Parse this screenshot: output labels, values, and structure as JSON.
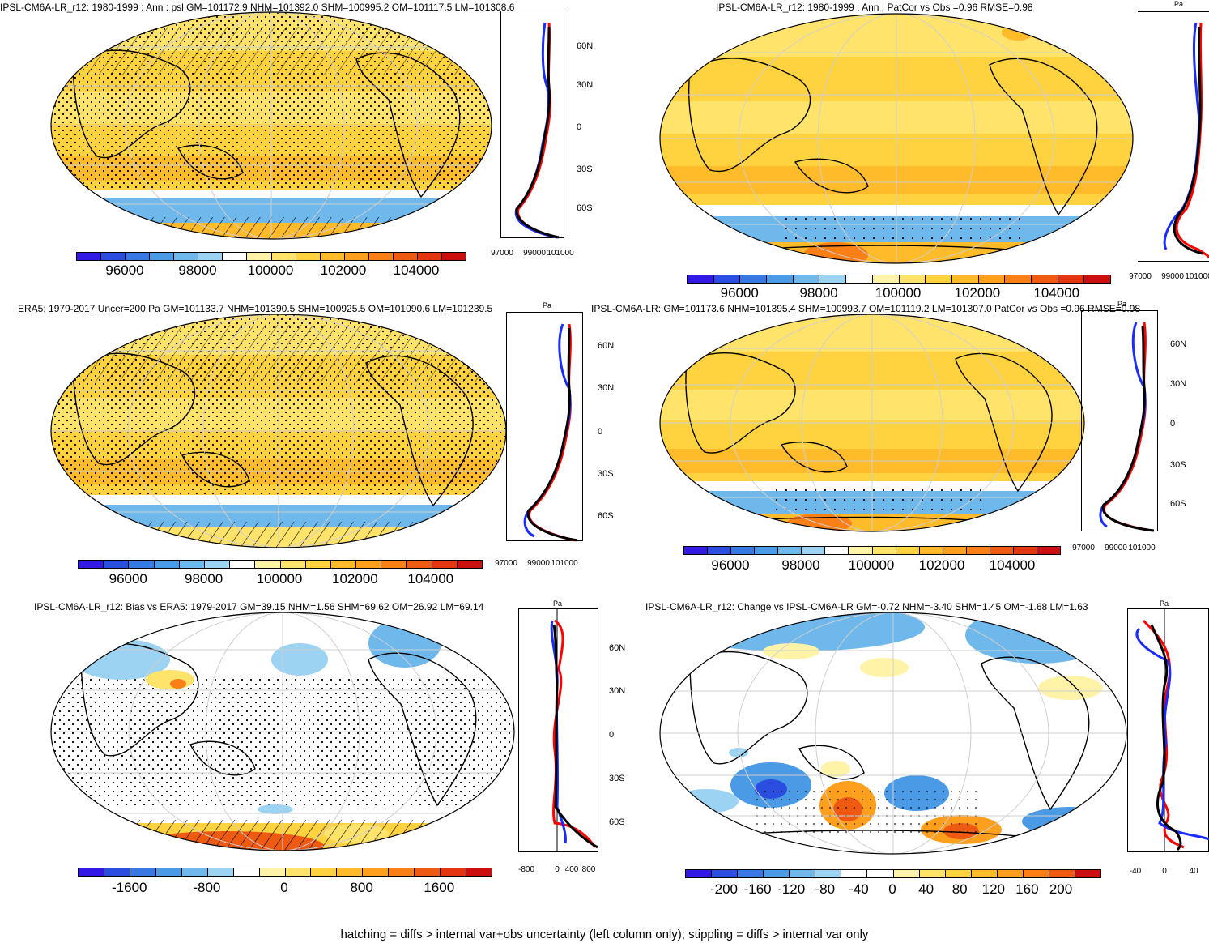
{
  "footer": "hatching = diffs > internal var+obs uncertainty (left column only); stippling = diffs > internal var only",
  "colorbars": {
    "abs": {
      "colors": [
        "#3219e6",
        "#2b4ee0",
        "#3778e3",
        "#4a9ae6",
        "#6fb8ec",
        "#9cd2f2",
        "#ffffff",
        "#fff3a8",
        "#ffe36b",
        "#ffd240",
        "#ffbb2a",
        "#ff9f1e",
        "#f97f16",
        "#ef5a13",
        "#e23510",
        "#cc0e0e"
      ],
      "labels": [
        "96000",
        "98000",
        "100000",
        "102000",
        "104000"
      ]
    },
    "bias": {
      "colors": [
        "#3219e6",
        "#2b4ee0",
        "#3778e3",
        "#4a9ae6",
        "#6fb8ec",
        "#9cd2f2",
        "#ffffff",
        "#fff3a8",
        "#ffe36b",
        "#ffd240",
        "#ffbb2a",
        "#ff9f1e",
        "#f97f16",
        "#ef5a13",
        "#e23510",
        "#cc0e0e"
      ],
      "labels": [
        "-1600",
        "-800",
        "0",
        "800",
        "1600"
      ]
    },
    "change": {
      "colors": [
        "#3219e6",
        "#2b4ee0",
        "#3778e3",
        "#4a9ae6",
        "#6fb8ec",
        "#9cd2f2",
        "#ffffff",
        "#ffffff",
        "#fff3a8",
        "#ffe36b",
        "#ffd240",
        "#ffbb2a",
        "#ff9f1e",
        "#f97f16",
        "#ef5a13",
        "#cc0e0e"
      ],
      "labels": [
        "-200",
        "-160",
        "-120",
        "-80",
        "-40",
        "0",
        "40",
        "80",
        "120",
        "160",
        "200"
      ]
    }
  },
  "lat_labels": [
    "60N",
    "30N",
    "0",
    "30S",
    "60S"
  ],
  "unit": "Pa",
  "panels": [
    {
      "title": "IPSL-CM6A-LR_r12: 1980-1999 : Ann : psl GM=101172.9 NHM=101392.0 SHM=100995.2 OM=101117.5 LM=101308.6",
      "zonal_x": [
        "97000",
        "99000",
        "101000"
      ]
    },
    {
      "title": "IPSL-CM6A-LR_r12: 1980-1999 : Ann : PatCor vs Obs =0.96 RMSE=0.98",
      "zonal_x": [
        "97000",
        "99000",
        "101000"
      ]
    },
    {
      "title": "ERA5: 1979-2017 Uncer=200 Pa GM=101133.7 NHM=101390.5 SHM=100925.5 OM=101090.6 LM=101239.5",
      "zonal_x": [
        "97000",
        "99000",
        "101000"
      ]
    },
    {
      "title": "IPSL-CM6A-LR: GM=101173.6 NHM=101395.4 SHM=100993.7 OM=101119.2 LM=101307.0 PatCor vs Obs =0.96 RMSE=0.98",
      "zonal_x": [
        "97000",
        "99000",
        "101000"
      ]
    },
    {
      "title": "IPSL-CM6A-LR_r12: Bias vs ERA5: 1979-2017 GM=39.15 NHM=1.56 SHM=69.62 OM=26.92 LM=69.14",
      "zonal_x": [
        "-800",
        "0",
        "400",
        "800"
      ]
    },
    {
      "title": "IPSL-CM6A-LR_r12: Change vs IPSL-CM6A-LR GM=-0.72 NHM=-3.40 SHM=1.45 OM=-1.68 LM=1.63",
      "zonal_x": [
        "-40",
        "0",
        "40"
      ]
    }
  ]
}
